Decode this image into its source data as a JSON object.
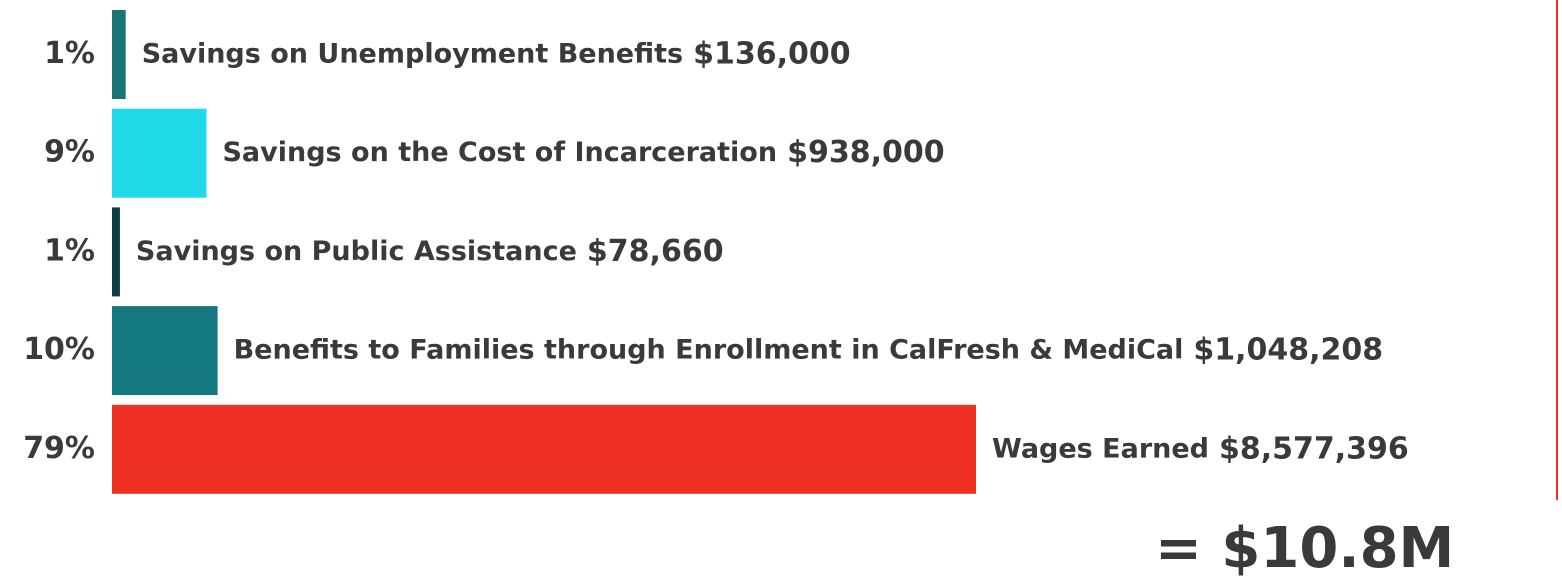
{
  "chart_data": {
    "type": "bar",
    "categories": [
      "Savings on Unemployment Benefits",
      "Savings on the Cost of Incarceration",
      "Savings on Public Assistance",
      "Benefits to Families through Enrollment in CalFresh & MediCal",
      "Wages Earned"
    ],
    "values": [
      136000,
      938000,
      78660,
      1048208,
      8577396
    ],
    "value_labels": [
      "$136,000",
      "$938,000",
      "$78,660",
      "$1,048,208",
      "$8,577,396"
    ],
    "share": [
      1,
      9,
      1,
      10,
      79
    ],
    "share_labels": [
      "1%",
      "9%",
      "1%",
      "10%",
      "79%"
    ],
    "colors": [
      "#1a7377",
      "#1fd8e8",
      "#0d3c40",
      "#137880",
      "#ee3124"
    ],
    "total_label": "= $10.8M"
  }
}
